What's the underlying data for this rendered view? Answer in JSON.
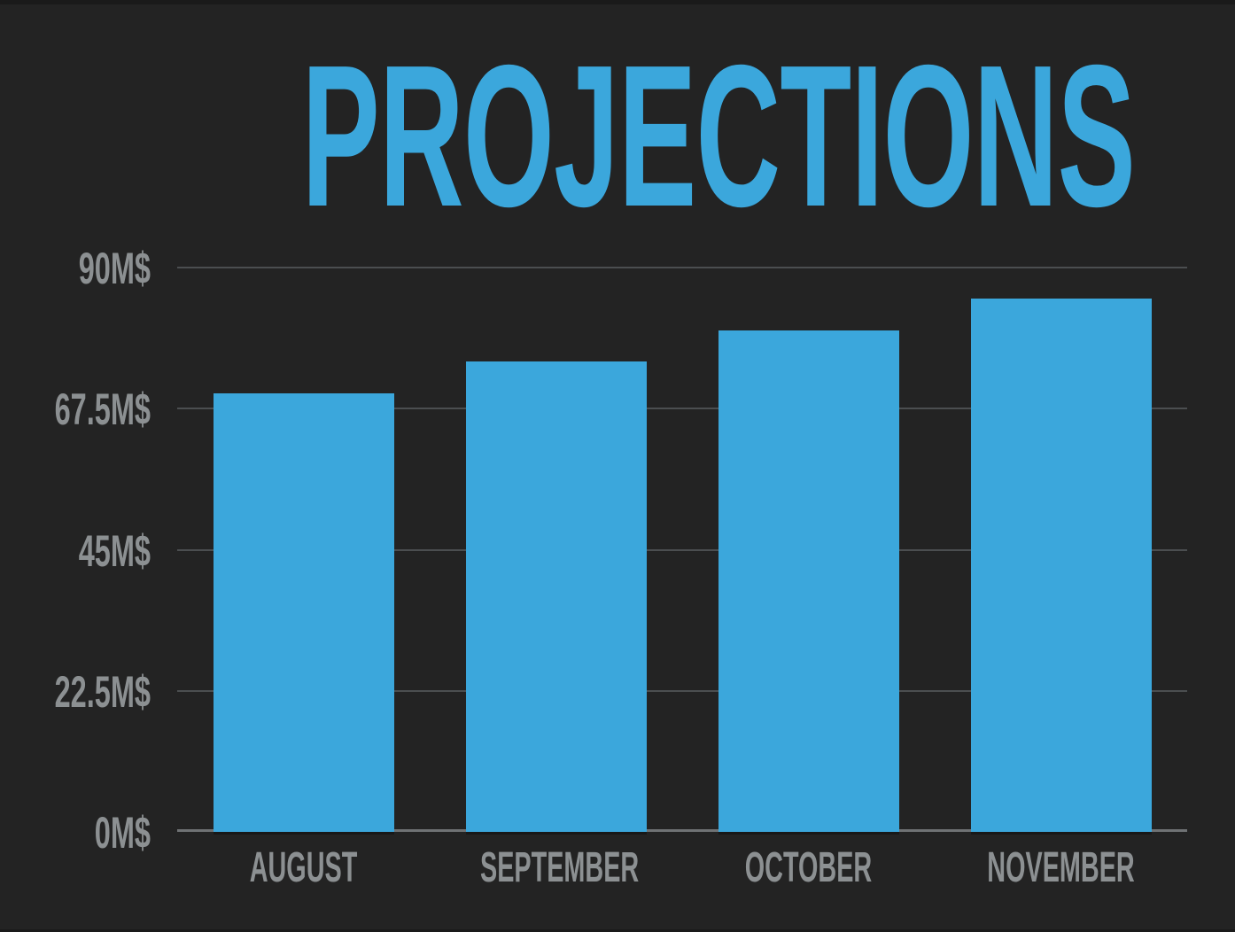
{
  "page": {
    "background": "#232323",
    "edge_strip_color": "#1a1a1a"
  },
  "title": {
    "text": "PROJECTIONS",
    "color": "#3BA7DC"
  },
  "chart_data": {
    "type": "bar",
    "title": "PROJECTIONS",
    "categories": [
      "AUGUST",
      "SEPTEMBER",
      "OCTOBER",
      "NOVEMBER"
    ],
    "values": [
      70,
      75,
      80,
      85
    ],
    "unit": "M$",
    "xlabel": "",
    "ylabel": "",
    "ylim": [
      0,
      90
    ],
    "y_ticks": [
      {
        "label": "0M$",
        "value": 0
      },
      {
        "label": "22.5M$",
        "value": 22.5
      },
      {
        "label": "45M$",
        "value": 45
      },
      {
        "label": "67.5M$",
        "value": 67.5
      },
      {
        "label": "90M$",
        "value": 90
      }
    ],
    "grid": true,
    "legend_position": "none",
    "bar_color": "#3BA7DC",
    "grid_color": "#4B4E50",
    "axis_line_color": "#6F7274",
    "label_color": "#8C9092"
  }
}
